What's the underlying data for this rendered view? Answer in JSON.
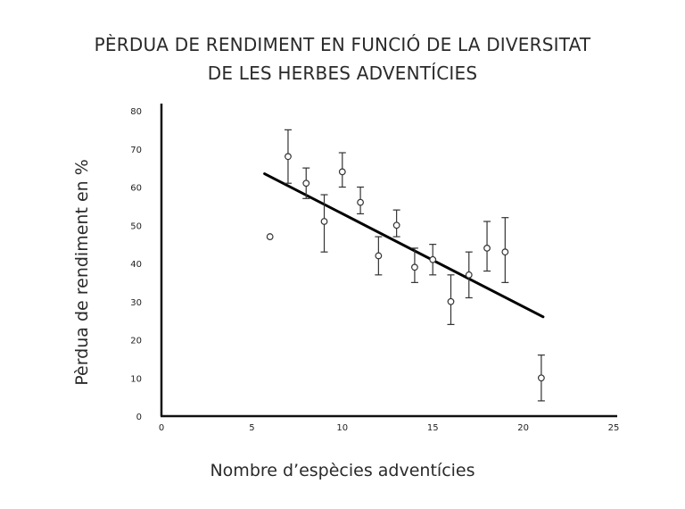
{
  "chart_data": {
    "type": "scatter",
    "title": [
      "PÈRDUA DE RENDIMENT EN FUNCIÓ DE LA DIVERSITAT",
      "DE LES HERBES ADVENTÍCIES"
    ],
    "xlabel": "Nombre d’espècies adventícies",
    "ylabel": "Pèrdua de rendiment en %",
    "xlim": [
      0,
      25
    ],
    "ylim": [
      0,
      80
    ],
    "x_ticks": [
      "0",
      "5",
      "10",
      "15",
      "20",
      "25"
    ],
    "y_ticks": [
      "0",
      "10",
      "20",
      "30",
      "40",
      "50",
      "60",
      "70",
      "80"
    ],
    "points": [
      {
        "x": 6,
        "y": 47
      },
      {
        "x": 7,
        "y": 68,
        "low": 61,
        "high": 75
      },
      {
        "x": 8,
        "y": 61,
        "low": 57,
        "high": 65
      },
      {
        "x": 9,
        "y": 51,
        "low": 43,
        "high": 58
      },
      {
        "x": 10,
        "y": 64,
        "low": 60,
        "high": 69
      },
      {
        "x": 11,
        "y": 56,
        "low": 53,
        "high": 60
      },
      {
        "x": 12,
        "y": 42,
        "low": 37,
        "high": 47
      },
      {
        "x": 13,
        "y": 50,
        "low": 47,
        "high": 54
      },
      {
        "x": 14,
        "y": 39,
        "low": 35,
        "high": 44
      },
      {
        "x": 15,
        "y": 41,
        "low": 37,
        "high": 45
      },
      {
        "x": 16,
        "y": 30,
        "low": 24,
        "high": 37
      },
      {
        "x": 17,
        "y": 37,
        "low": 31,
        "high": 43
      },
      {
        "x": 18,
        "y": 44,
        "low": 38,
        "high": 51
      },
      {
        "x": 19,
        "y": 43,
        "low": 35,
        "high": 52
      },
      {
        "x": 21,
        "y": 10,
        "low": 4,
        "high": 16
      }
    ],
    "trendline": {
      "x": [
        5.7,
        21.1
      ],
      "y": [
        63.5,
        26
      ]
    },
    "grid": false,
    "legend": "none"
  }
}
